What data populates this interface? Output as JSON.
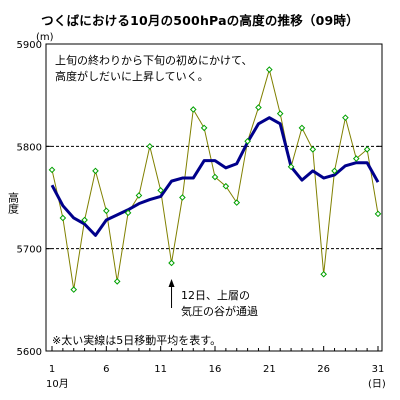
{
  "chart_data": {
    "type": "line",
    "title": "つくばにおける10月の500hPaの高度の推移（09時）",
    "ylabel": "高度",
    "y_unit": "(m)",
    "x_unit": "(日)",
    "x_month_label": "10月",
    "ylim": [
      5600,
      5900
    ],
    "y_ticks": [
      5600,
      5700,
      5800,
      5900
    ],
    "dashed_gridlines": [
      5800,
      5700
    ],
    "x_ticks": [
      1,
      6,
      11,
      16,
      21,
      26,
      31
    ],
    "x": [
      1,
      2,
      3,
      4,
      5,
      6,
      7,
      8,
      9,
      10,
      11,
      12,
      13,
      14,
      15,
      16,
      17,
      18,
      19,
      20,
      21,
      22,
      23,
      24,
      25,
      26,
      27,
      28,
      29,
      30,
      31
    ],
    "series": [
      {
        "role": "daily",
        "color": "#808000",
        "marker_color": "#00a000",
        "values": [
          5777,
          5730,
          5660,
          5728,
          5776,
          5737,
          5668,
          5735,
          5752,
          5800,
          5757,
          5686,
          5750,
          5836,
          5818,
          5770,
          5761,
          5745,
          5805,
          5838,
          5875,
          5832,
          5780,
          5818,
          5797,
          5675,
          5776,
          5828,
          5788,
          5797,
          5734
        ]
      },
      {
        "role": "5-day moving average",
        "color": "#00008b",
        "values": [
          5762,
          5742,
          5730,
          5724,
          5713,
          5728,
          5733,
          5738,
          5744,
          5748,
          5751,
          5766,
          5769,
          5769,
          5786,
          5786,
          5779,
          5783,
          5804,
          5822,
          5828,
          5822,
          5780,
          5767,
          5776,
          5769,
          5772,
          5781,
          5784,
          5784,
          5765
        ]
      }
    ],
    "annotations": {
      "trend_note_line1": "上旬の終わりから下旬の初めにかけて、",
      "trend_note_line2": "高度がしだいに上昇していく。",
      "event_note_line1": "12日、上層の",
      "event_note_line2": "気圧の谷が通過",
      "event_day": 12,
      "footnote": "※太い実線は5日移動平均を表す。"
    }
  }
}
